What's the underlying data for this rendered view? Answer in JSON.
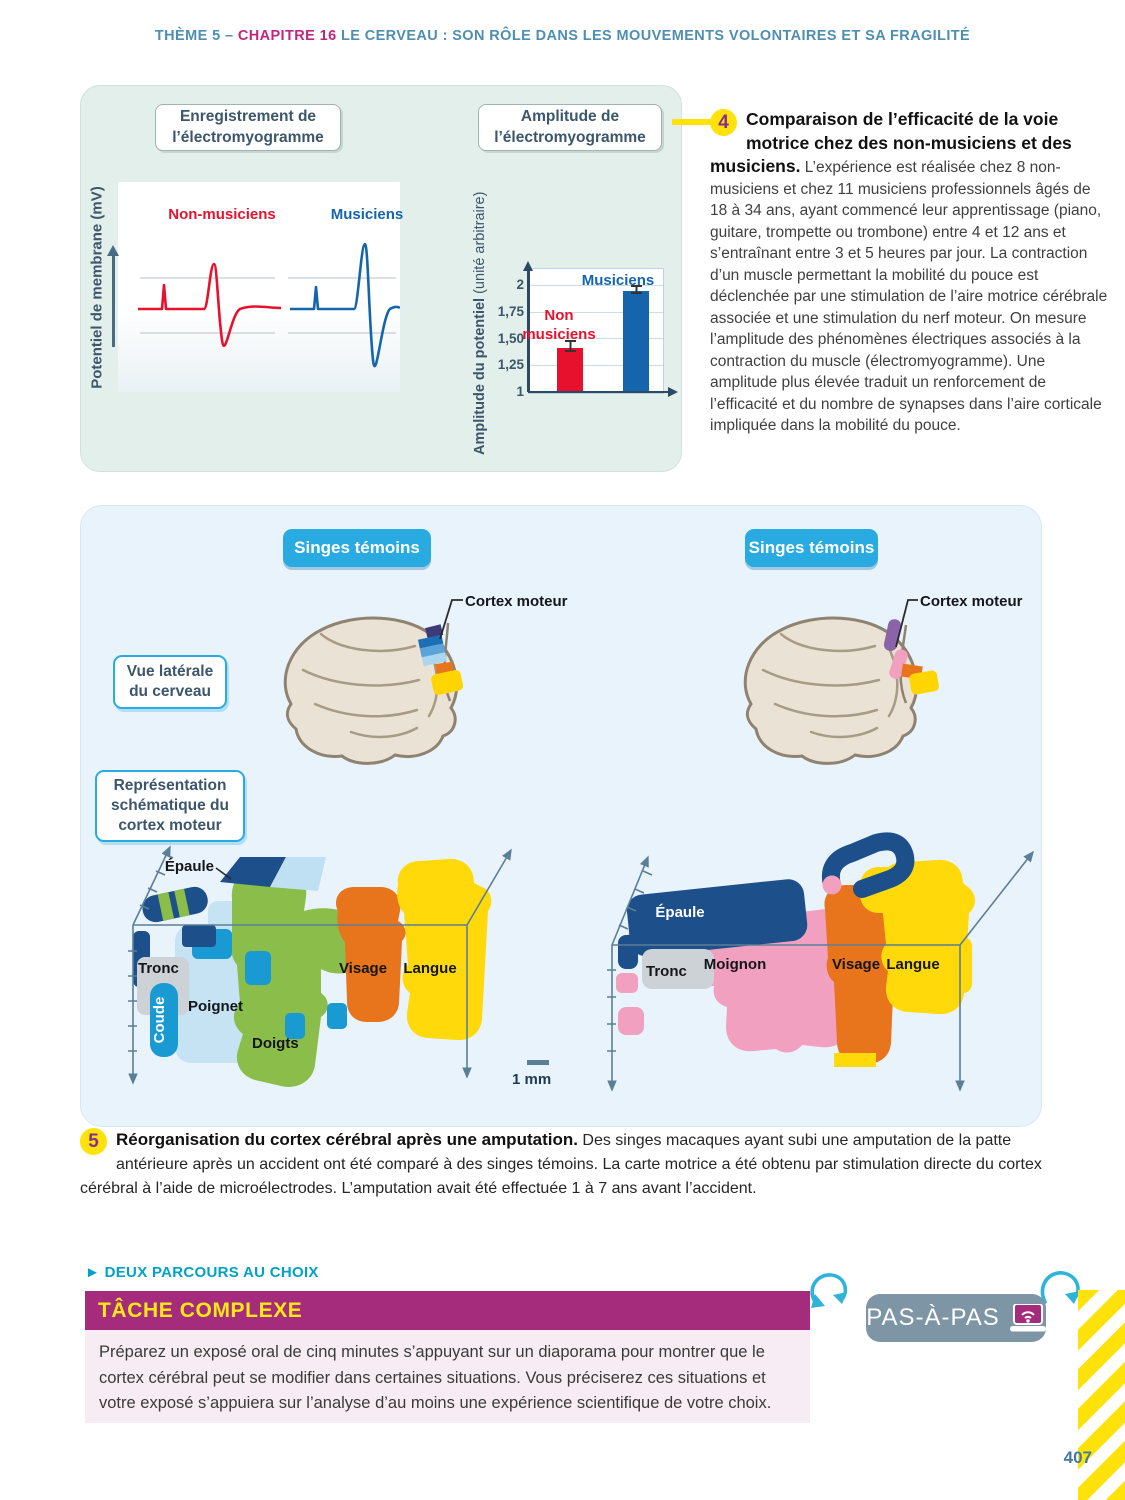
{
  "header": {
    "theme": "THÈME 5 – ",
    "chapter": "CHAPITRE 16",
    "title": " LE CERVEAU : SON RÔLE DANS LES MOUVEMENTS VOLONTAIRES ET SA FRAGILITÉ"
  },
  "doc4": {
    "number": "4",
    "heading": "Comparaison de l’efficacité de la voie motrice chez des non-musiciens et des musiciens.",
    "body": "L’expérience est réalisée chez 8 non-musiciens et chez 11 musiciens professionnels âgés de 18 à 34 ans, ayant commencé leur apprentissage (piano, guitare, trompette ou trombone) entre 4 et 12 ans et s’entraînant entre 3 et 5 heures par jour. La contraction d’un muscle permettant la mobilité du pouce est déclenchée par une stimulation de l’aire motrice cérébrale associée et une stimulation du nerf moteur. On mesure l’amplitude des phénomènes électriques associés à la contraction du muscle (électromyogramme). Une amplitude plus élevée traduit un renforcement de l’efficacité et du nombre de synapses dans l’aire corticale impliquée dans la mobilité du pouce."
  },
  "emg": {
    "panel1_title": "Enregistrement de l’électromyogramme",
    "panel2_title": "Amplitude de l’électromyogramme",
    "y_axis_label": "Potentiel de membrane (mV)",
    "trace1_label": "Non-musiciens",
    "trace2_label": "Musiciens",
    "y_axis_label2_bold": "Amplitude du potentiel",
    "y_axis_label2_unit": " (unité arbitraire)"
  },
  "chart_data": {
    "type": "bar",
    "title": "Amplitude de l’électromyogramme",
    "categories": [
      "Non musiciens",
      "Musiciens"
    ],
    "values": [
      1.42,
      1.95
    ],
    "errors": [
      0.04,
      0.02
    ],
    "bar_colors": [
      "#e8112d",
      "#1565ad"
    ],
    "label_colors": [
      "#e8112d",
      "#1565ad"
    ],
    "ylabel": "Amplitude du potentiel (unité arbitraire)",
    "yticks": [
      "1",
      "1,25",
      "1,50",
      "1,75",
      "2"
    ],
    "ylim": [
      1,
      2.15
    ],
    "grid": true
  },
  "fig5": {
    "number": "5",
    "heading": "Réorganisation du cortex cérébral après une amputation.",
    "body": "Des singes macaques ayant subi une amputation de la patte antérieure après un accident ont été comparé à des singes témoins. La carte motrice a été obtenu par stimulation directe du cortex cérébral à l’aide de microélectrodes. L’amputation avait été effectuée 1 à 7 ans avant l’accident.",
    "left_group_label": "Singes témoins",
    "right_group_label": "Singes témoins",
    "cortex_label_left": "Cortex moteur",
    "cortex_label_right": "Cortex moteur",
    "side_view_label": "Vue latérale du cerveau",
    "schematic_label": "Représentation schématique du cortex moteur",
    "scale_label": "1 mm",
    "map_left": {
      "epaule": "Épaule",
      "tronc": "Tronc",
      "poignet": "Poignet",
      "coude": "Coude",
      "doigts": "Doigts",
      "visage": "Visage",
      "langue": "Langue"
    },
    "map_right": {
      "epaule": "Épaule",
      "tronc": "Tronc",
      "moignon": "Moignon",
      "visage": "Visage",
      "langue": "Langue"
    }
  },
  "footer": {
    "parcours_label": "DEUX PARCOURS AU CHOIX",
    "task_title": "TÂCHE COMPLEXE",
    "task_body": "Préparez un exposé oral de cinq minutes s’appuyant sur un diaporama pour montrer que le cortex cérébral peut se modifier dans certaines situations. Vous préciserez ces situations et votre exposé s’appuiera sur l’analyse d’au moins une expérience scientifique de votre choix.",
    "pas_label": "PAS-À-PAS",
    "page_number": "407"
  },
  "icons": {
    "triangle_right": "►"
  }
}
